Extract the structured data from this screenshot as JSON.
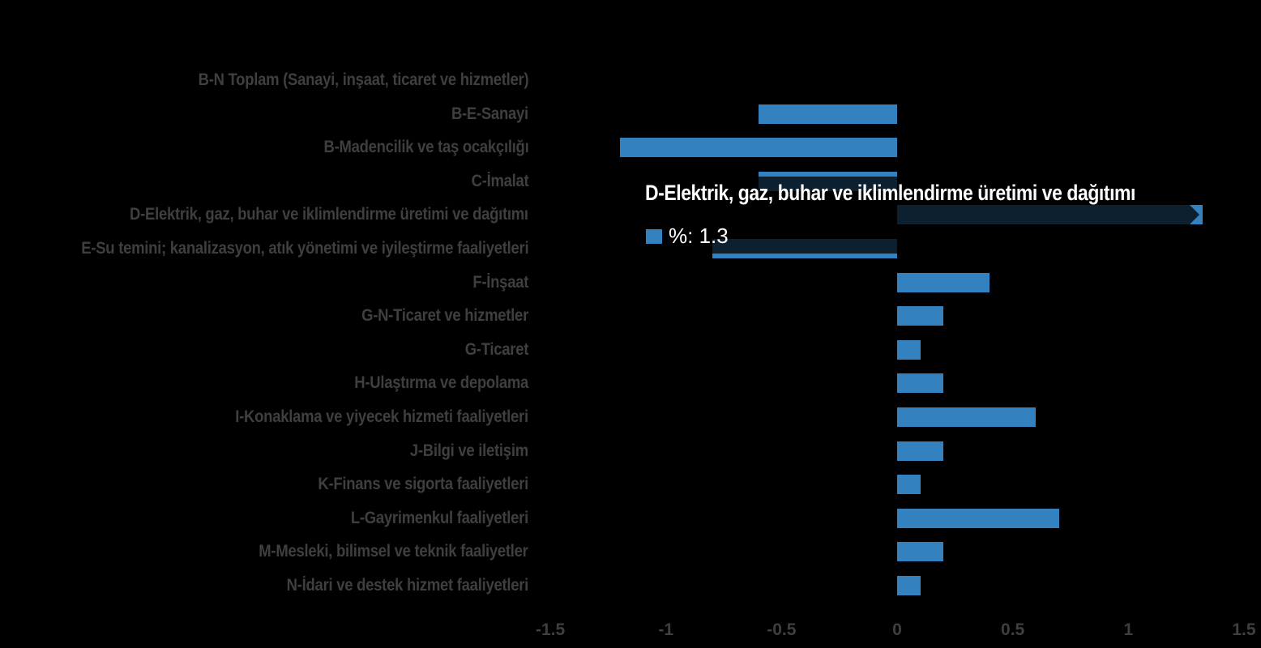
{
  "page": {
    "background": "#000000"
  },
  "colors": {
    "bar": "#3381BE",
    "dimmed_overlay": "rgba(0,0,0,0.75)",
    "category_label": "#3F3F3F",
    "axis_tick_label": "#3F3F3F",
    "tooltip_text": "#FFFFFF"
  },
  "chart_data": {
    "type": "bar",
    "orientation": "horizontal",
    "categories": [
      "B-N Toplam (Sanayi, inşaat, ticaret ve hizmetler)",
      "B-E-Sanayi",
      "B-Madencilik ve taş ocakçılığı",
      "C-İmalat",
      "D-Elektrik, gaz, buhar ve iklimlendirme üretimi ve dağıtımı",
      "E-Su temini; kanalizasyon, atık yönetimi ve iyileştirme faaliyetleri",
      "F-İnşaat",
      "G-N-Ticaret ve hizmetler",
      "G-Ticaret",
      "H-Ulaştırma ve depolama",
      "I-Konaklama ve yiyecek hizmeti faaliyetleri",
      "J-Bilgi ve iletişim",
      "K-Finans ve sigorta faaliyetleri",
      "L-Gayrimenkul faaliyetleri",
      "M-Mesleki, bilimsel ve teknik faaliyetler",
      "N-İdari ve destek hizmet faaliyetleri"
    ],
    "values": [
      0,
      -0.6,
      -1.2,
      -0.6,
      1.3,
      -0.8,
      0.4,
      0.2,
      0.1,
      0.2,
      0.6,
      0.2,
      0.1,
      0.7,
      0.2,
      0.1
    ],
    "series_name": "%",
    "xlim": [
      -1.5,
      1.5
    ],
    "x_ticks": [
      "-1.5",
      "-1",
      "-0.5",
      "0",
      "0.5",
      "1",
      "1.5"
    ],
    "x_tick_values": [
      -1.5,
      -1,
      -0.5,
      0,
      0.5,
      1,
      1.5
    ],
    "grid": false,
    "legend_position": "none",
    "highlighted_index": 4,
    "highlighted_category": "D-Elektrik, gaz, buhar ve iklimlendirme üretimi ve dağıtımı",
    "highlighted_value": 1.3
  },
  "tooltip": {
    "title": "D-Elektrik, gaz, buhar ve iklimlendirme üretimi ve dağıtımı",
    "series_label": "%",
    "value": "1.3",
    "value_text": "%: 1.3"
  }
}
